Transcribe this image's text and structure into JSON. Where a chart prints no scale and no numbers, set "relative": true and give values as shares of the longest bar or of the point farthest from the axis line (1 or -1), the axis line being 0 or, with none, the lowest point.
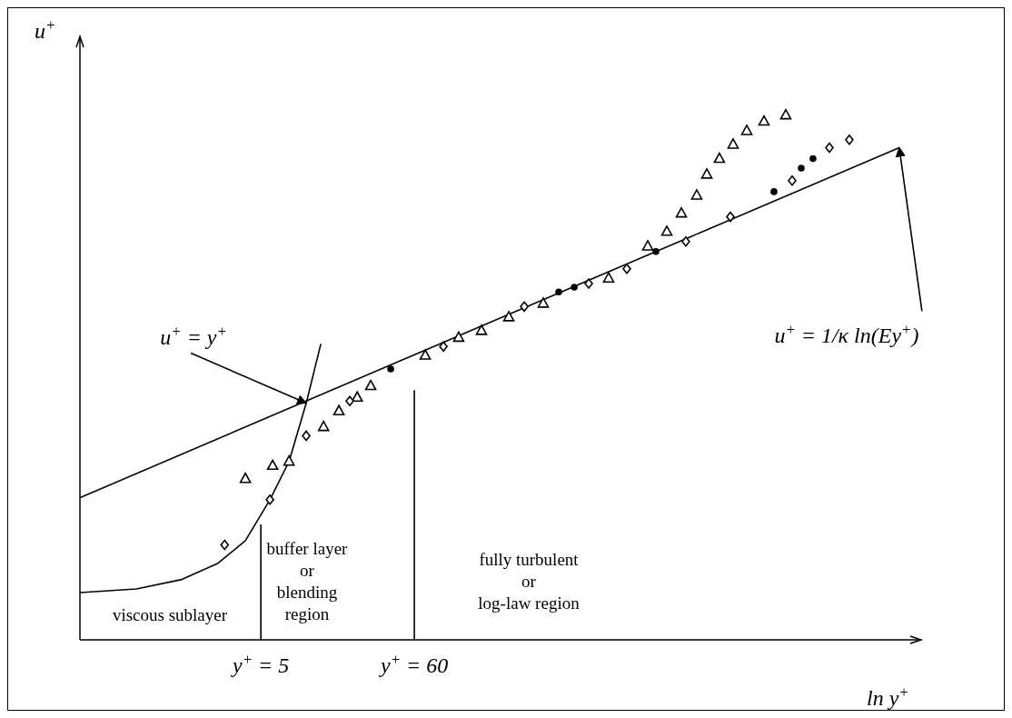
{
  "chart_data": {
    "type": "scatter",
    "relative": true,
    "log": "x",
    "xlabel": "ln y$^{+}$",
    "ylabel": "u$^{+}$",
    "xlim": [
      0.267,
      220000
    ],
    "xticks": [
      {
        "value": 5,
        "label": "y$^{+}$ = 5"
      },
      {
        "value": 60,
        "label": "y$^{+}$ = 60"
      }
    ],
    "series": [
      {
        "type": "line",
        "color": "#000000",
        "x": [
          0.268,
          0.666,
          1.39,
          2.5,
          3.89,
          5.79,
          7.89,
          10.42,
          13.2
        ],
        "values": [
          0.09,
          0.097,
          0.115,
          0.146,
          0.189,
          0.267,
          0.34,
          0.451,
          0.564
        ]
      },
      {
        "type": "line",
        "color": "#000000",
        "x": [
          0.268,
          154300
        ],
        "values": [
          0.271,
          0.938
        ]
      },
      {
        "type": "line",
        "color": "#000000",
        "x": [
          5,
          5
        ],
        "values": [
          0,
          0.22
        ]
      },
      {
        "type": "line",
        "color": "#000000",
        "x": [
          60,
          60
        ],
        "values": [
          0,
          0.476
        ]
      },
      {
        "type": "scatter",
        "marker": "triangle",
        "color": "#000000",
        "x": [
          3.89,
          6.05,
          7.89,
          13.8,
          17.7,
          23.8,
          29.6,
          71.6,
          123,
          178,
          277,
          484,
          1395,
          2628,
          3580,
          4530,
          5810,
          6840,
          8390,
          10470,
          13060,
          17260,
          24570
        ],
        "values": [
          0.307,
          0.332,
          0.34,
          0.406,
          0.436,
          0.462,
          0.484,
          0.542,
          0.576,
          0.589,
          0.615,
          0.641,
          0.689,
          0.75,
          0.778,
          0.813,
          0.847,
          0.887,
          0.917,
          0.944,
          0.97,
          0.988,
          1
        ]
      },
      {
        "type": "scatter",
        "marker": "diamond",
        "color": "#000000",
        "x": [
          2.78,
          5.79,
          10.42,
          21.1,
          96.1,
          356,
          1010,
          1873,
          4870,
          10020,
          27240,
          49780,
          68770
        ],
        "values": [
          0.181,
          0.267,
          0.389,
          0.455,
          0.559,
          0.635,
          0.679,
          0.707,
          0.759,
          0.806,
          0.875,
          0.938,
          0.953
        ]
      },
      {
        "type": "scatter",
        "marker": "circle",
        "color": "#000000",
        "x": [
          40.9,
          622,
          799,
          2999,
          20290,
          31540,
          38180
        ],
        "values": [
          0.516,
          0.663,
          0.672,
          0.74,
          0.854,
          0.899,
          0.917
        ]
      }
    ],
    "annotations": [
      {
        "text": "u$^{+}$ = y$^{+}$",
        "x": 10.42,
        "y": 0.451
      },
      {
        "text": "u$^{+}$ = 1/κ ln(Ey$^{+}$)",
        "x": 154300,
        "y": 0.938
      },
      "viscous sublayer",
      "buffer layer\nor\nblending\nregion",
      "fully turbulent\nor\nlog-law region"
    ]
  }
}
